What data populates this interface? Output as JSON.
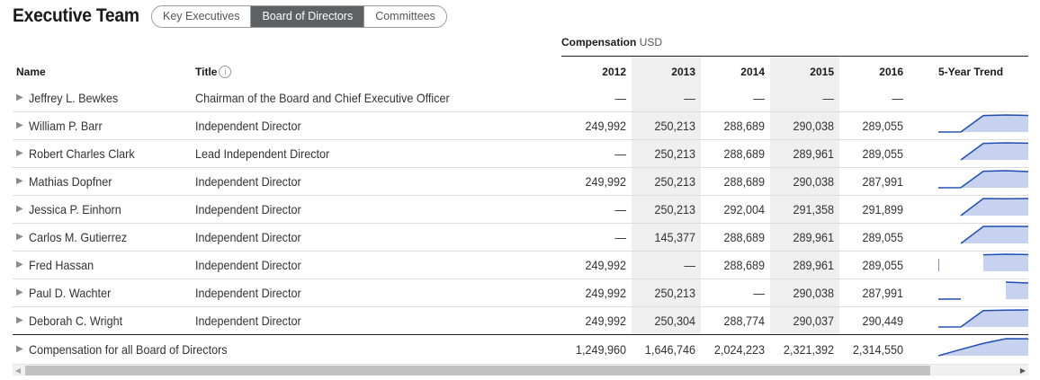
{
  "page_title": "Executive Team",
  "tabs": [
    {
      "label": "Key Executives",
      "active": false
    },
    {
      "label": "Board of Directors",
      "active": true
    },
    {
      "label": "Committees",
      "active": false
    }
  ],
  "compensation_label": "Compensation",
  "compensation_unit": "USD",
  "columns": {
    "name": "Name",
    "title": "Title",
    "years": [
      "2012",
      "2013",
      "2014",
      "2015",
      "2016"
    ],
    "trend": "5-Year Trend"
  },
  "rows": [
    {
      "name": "Jeffrey L. Bewkes",
      "title": "Chairman of the Board and Chief Executive Officer",
      "values": [
        "—",
        "—",
        "—",
        "—",
        "—"
      ],
      "trend": [
        null,
        null,
        null,
        null,
        null
      ]
    },
    {
      "name": "William P. Barr",
      "title": "Independent Director",
      "values": [
        "249,992",
        "250,213",
        "288,689",
        "290,038",
        "289,055"
      ],
      "trend": [
        249992,
        250213,
        288689,
        290038,
        289055
      ]
    },
    {
      "name": "Robert Charles Clark",
      "title": "Lead Independent Director",
      "values": [
        "—",
        "250,213",
        "288,689",
        "289,961",
        "289,055"
      ],
      "trend": [
        null,
        250213,
        288689,
        289961,
        289055
      ]
    },
    {
      "name": "Mathias Dopfner",
      "title": "Independent Director",
      "values": [
        "249,992",
        "250,213",
        "288,689",
        "290,038",
        "287,991"
      ],
      "trend": [
        249992,
        250213,
        288689,
        290038,
        287991
      ]
    },
    {
      "name": "Jessica P. Einhorn",
      "title": "Independent Director",
      "values": [
        "—",
        "250,213",
        "292,004",
        "291,358",
        "291,899"
      ],
      "trend": [
        null,
        250213,
        292004,
        291358,
        291899
      ]
    },
    {
      "name": "Carlos M. Gutierrez",
      "title": "Independent Director",
      "values": [
        "—",
        "145,377",
        "288,689",
        "289,961",
        "289,055"
      ],
      "trend": [
        null,
        145377,
        288689,
        289961,
        289055
      ]
    },
    {
      "name": "Fred Hassan",
      "title": "Independent Director",
      "values": [
        "249,992",
        "—",
        "288,689",
        "289,961",
        "289,055"
      ],
      "trend": [
        249992,
        null,
        288689,
        289961,
        289055
      ]
    },
    {
      "name": "Paul D. Wachter",
      "title": "Independent Director",
      "values": [
        "249,992",
        "250,213",
        "—",
        "290,038",
        "287,991"
      ],
      "trend": [
        249992,
        250213,
        null,
        290038,
        287991
      ]
    },
    {
      "name": "Deborah C. Wright",
      "title": "Independent Director",
      "values": [
        "249,992",
        "250,304",
        "288,774",
        "290,037",
        "290,449"
      ],
      "trend": [
        249992,
        250304,
        288774,
        290037,
        290449
      ]
    }
  ],
  "total_row": {
    "name": "Compensation for all Board of Directors",
    "title": "",
    "values": [
      "1,249,960",
      "1,646,746",
      "2,024,223",
      "2,321,392",
      "2,314,550"
    ],
    "trend": [
      1249960,
      1646746,
      2024223,
      2321392,
      2314550
    ]
  },
  "colors": {
    "trend_line": "#1f4eb4",
    "trend_fill": "#c6d2ef",
    "active_tab": "#5e6164",
    "shaded_column": "#efefef"
  },
  "icons": {
    "row_expand": "caret-right-icon",
    "info": "info-icon",
    "scroll_left": "arrow-left-icon",
    "scroll_right": "arrow-right-icon"
  }
}
